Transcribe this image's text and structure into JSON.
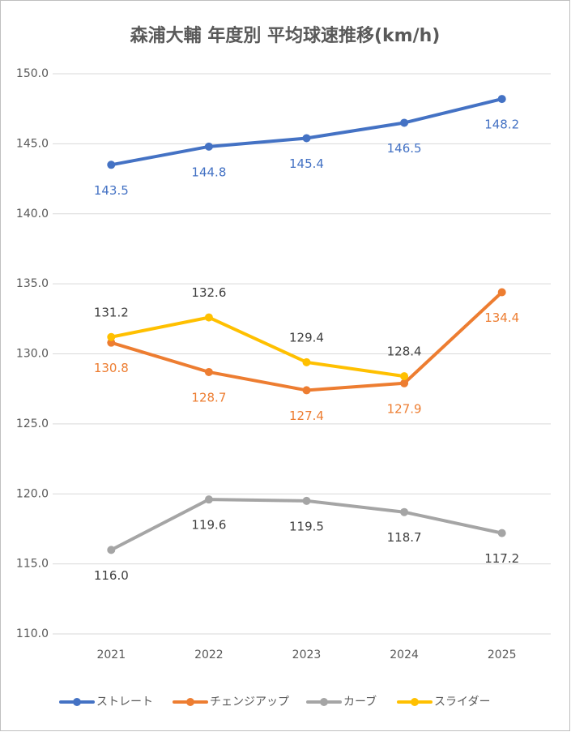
{
  "chart_data": {
    "type": "line",
    "title": "森浦大輔 年度別 平均球速推移(km/h)",
    "categories": [
      "2021",
      "2022",
      "2023",
      "2024",
      "2025"
    ],
    "series": [
      {
        "name": "ストレート",
        "color": "#4472c4",
        "values": [
          143.5,
          144.8,
          145.4,
          146.5,
          148.2
        ],
        "value_labels": [
          "143.5",
          "144.8",
          "145.4",
          "146.5",
          "148.2"
        ]
      },
      {
        "name": "チェンジアップ",
        "color": "#ed7d31",
        "values": [
          130.8,
          128.7,
          127.4,
          127.9,
          134.4
        ],
        "value_labels": [
          "130.8",
          "128.7",
          "127.4",
          "127.9",
          "134.4"
        ]
      },
      {
        "name": "カーブ",
        "color": "#a5a5a5",
        "values": [
          116.0,
          119.6,
          119.5,
          118.7,
          117.2
        ],
        "value_labels": [
          "116.0",
          "119.6",
          "119.5",
          "118.7",
          "117.2"
        ]
      },
      {
        "name": "スライダー",
        "color": "#ffc000",
        "values": [
          131.2,
          132.6,
          129.4,
          128.4,
          null
        ],
        "value_labels": [
          "131.2",
          "132.6",
          "129.4",
          "128.4",
          null
        ]
      }
    ],
    "ylim": [
      110,
      150
    ],
    "yticks": [
      {
        "value": 110,
        "label": "110.0"
      },
      {
        "value": 115,
        "label": "115.0"
      },
      {
        "value": 120,
        "label": "120.0"
      },
      {
        "value": 125,
        "label": "125.0"
      },
      {
        "value": 130,
        "label": "130.0"
      },
      {
        "value": 135,
        "label": "135.0"
      },
      {
        "value": 140,
        "label": "140.0"
      },
      {
        "value": 145,
        "label": "145.0"
      },
      {
        "value": 150,
        "label": "150.0"
      }
    ],
    "grid": true,
    "legend": "bottom"
  }
}
